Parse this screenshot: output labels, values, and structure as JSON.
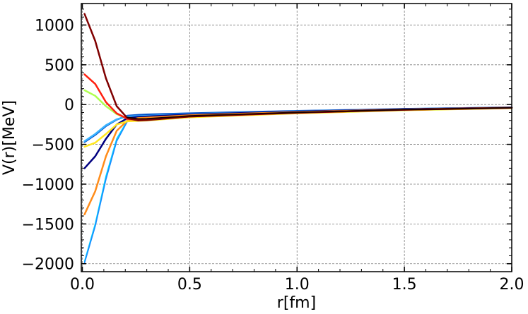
{
  "chart_data": {
    "type": "line",
    "xlabel": "r[fm]",
    "ylabel": "V(r)[MeV]",
    "xlim": [
      -0.005,
      2.0
    ],
    "ylim": [
      -2100,
      1270
    ],
    "x_ticks": [
      0.0,
      0.5,
      1.0,
      1.5,
      2.0
    ],
    "x_tick_labels": [
      "0.0",
      "0.5",
      "1.0",
      "1.5",
      "2.0"
    ],
    "y_ticks": [
      -2000,
      -1500,
      -1000,
      -500,
      0,
      500,
      1000
    ],
    "y_tick_labels": [
      "−2000",
      "−1500",
      "−1000",
      "−500",
      "0",
      "500",
      "1000"
    ],
    "grid": true,
    "legend": "none",
    "series": [
      {
        "color": "#00d4ff",
        "width": 1.6,
        "x": [
          0.01,
          0.06,
          0.11,
          0.16,
          0.21,
          0.26,
          0.3,
          0.5,
          1.0,
          1.5,
          2.0
        ],
        "y": [
          -1970,
          -1500,
          -900,
          -430,
          -200,
          -165,
          -150,
          -125,
          -90,
          -60,
          -38
        ]
      },
      {
        "color": "#1a8cff",
        "width": 1.6,
        "x": [
          0.01,
          0.06,
          0.11,
          0.16,
          0.21,
          0.26,
          0.3,
          0.5,
          1.0,
          1.5,
          2.0
        ],
        "y": [
          -1990,
          -1530,
          -940,
          -460,
          -210,
          -170,
          -152,
          -127,
          -92,
          -61,
          -39
        ]
      },
      {
        "color": "#0050cc",
        "width": 2.5,
        "x": [
          0.01,
          0.06,
          0.11,
          0.16,
          0.21,
          0.26,
          0.3,
          0.5,
          1.0,
          1.5,
          2.0
        ],
        "y": [
          -470,
          -380,
          -270,
          -190,
          -140,
          -130,
          -125,
          -110,
          -80,
          -55,
          -35
        ]
      },
      {
        "color": "#3ab4ff",
        "width": 2.5,
        "x": [
          0.01,
          0.06,
          0.11,
          0.16,
          0.21,
          0.26,
          0.3,
          0.5,
          1.0,
          1.5,
          2.0
        ],
        "y": [
          -460,
          -370,
          -260,
          -185,
          -150,
          -145,
          -142,
          -120,
          -85,
          -57,
          -36
        ]
      },
      {
        "color": "#000080",
        "width": 2.5,
        "x": [
          0.01,
          0.06,
          0.11,
          0.16,
          0.21,
          0.26,
          0.3,
          0.5,
          1.0,
          1.5,
          2.0
        ],
        "y": [
          -800,
          -650,
          -430,
          -250,
          -170,
          -155,
          -150,
          -125,
          -88,
          -58,
          -37
        ]
      },
      {
        "color": "#ff8c1a",
        "width": 2.5,
        "x": [
          0.01,
          0.06,
          0.11,
          0.16,
          0.21,
          0.26,
          0.3,
          0.5,
          1.0,
          1.5,
          2.0
        ],
        "y": [
          -1380,
          -1090,
          -650,
          -330,
          -200,
          -170,
          -165,
          -135,
          -95,
          -62,
          -40
        ]
      },
      {
        "color": "#ffe620",
        "width": 2.5,
        "x": [
          0.01,
          0.06,
          0.11,
          0.16,
          0.21,
          0.26,
          0.3,
          0.5,
          1.0,
          1.5,
          2.0
        ],
        "y": [
          -530,
          -480,
          -370,
          -250,
          -210,
          -205,
          -200,
          -160,
          -110,
          -72,
          -45
        ]
      },
      {
        "color": "#b0ff50",
        "width": 2.5,
        "x": [
          0.01,
          0.06,
          0.11,
          0.16,
          0.21,
          0.26,
          0.3,
          0.5,
          1.0,
          1.5,
          2.0
        ],
        "y": [
          180,
          110,
          -20,
          -120,
          -175,
          -190,
          -190,
          -150,
          -105,
          -68,
          -42
        ]
      },
      {
        "color": "#ff2010",
        "width": 2.5,
        "x": [
          0.01,
          0.06,
          0.11,
          0.16,
          0.21,
          0.26,
          0.3,
          0.5,
          1.0,
          1.5,
          2.0
        ],
        "y": [
          380,
          260,
          30,
          -110,
          -180,
          -195,
          -192,
          -150,
          -104,
          -66,
          -41
        ]
      },
      {
        "color": "#800000",
        "width": 2.5,
        "x": [
          0.01,
          0.06,
          0.11,
          0.16,
          0.21,
          0.26,
          0.3,
          0.5,
          1.0,
          1.5,
          2.0
        ],
        "y": [
          1140,
          800,
          330,
          -20,
          -170,
          -200,
          -195,
          -150,
          -102,
          -65,
          -40
        ]
      },
      {
        "color": "#1a0000",
        "width": 1.8,
        "x": [
          0.21,
          0.26,
          0.3,
          0.5,
          1.0,
          1.5,
          2.0
        ],
        "y": [
          -160,
          -180,
          -178,
          -142,
          -98,
          -63,
          -40
        ]
      }
    ]
  }
}
